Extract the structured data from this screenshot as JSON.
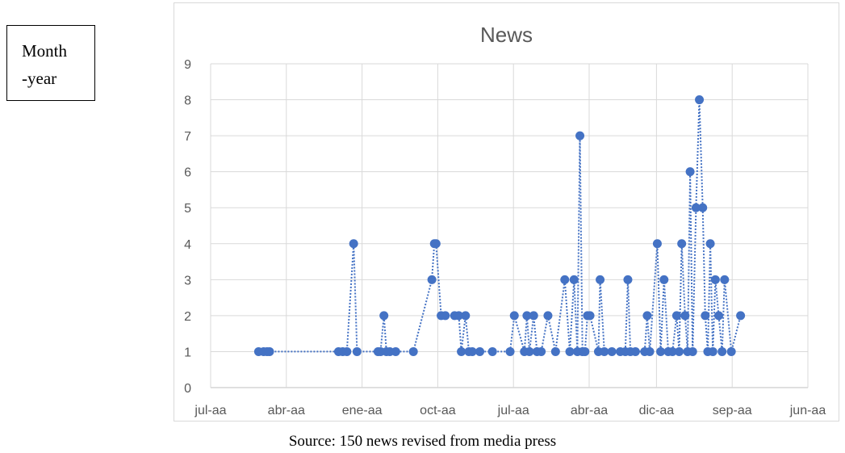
{
  "side_note": {
    "line1": "Month",
    "line2": "-year"
  },
  "caption": "Source: 150 news revised from media press",
  "chart_data": {
    "type": "line",
    "title": "News",
    "xlabel": "",
    "ylabel": "",
    "ylim": [
      0,
      9
    ],
    "y_ticks": [
      0,
      1,
      2,
      3,
      4,
      5,
      6,
      7,
      8,
      9
    ],
    "x_tick_labels": [
      "jul-aa",
      "abr-aa",
      "ene-aa",
      "oct-aa",
      "jul-aa",
      "abr-aa",
      "dic-aa",
      "sep-aa",
      "jun-aa"
    ],
    "x_tick_positions": [
      0,
      9,
      18,
      27,
      36,
      45,
      53,
      62,
      71
    ],
    "xlim": [
      0,
      71
    ],
    "grid": true,
    "line_style": "dotted",
    "color": "#4472c4",
    "series": [
      {
        "x": [
          5.7,
          6.3,
          6.7,
          7.0,
          15.2,
          15.7,
          16.2,
          17.0,
          17.4,
          19.9,
          20.2,
          20.6,
          20.9,
          21.3,
          22.0,
          24.1,
          26.3,
          26.6,
          26.8,
          27.4,
          27.9,
          29.0,
          29.5,
          29.8,
          30.3,
          30.7,
          31.1,
          32.0,
          33.5,
          35.6,
          36.1,
          37.3,
          37.6,
          37.9,
          38.4,
          38.8,
          39.3,
          40.1,
          41.0,
          42.1,
          42.7,
          43.2,
          43.6,
          43.9,
          44.2,
          44.5,
          44.8,
          45.1,
          46.1,
          46.3,
          46.8,
          47.7,
          48.7,
          49.3,
          49.6,
          49.9,
          50.5,
          51.6,
          51.9,
          52.2,
          53.1,
          53.5,
          53.9,
          54.4,
          54.9,
          55.4,
          55.7,
          56.0,
          56.4,
          56.7,
          57.0,
          57.3,
          57.7,
          58.1,
          58.5,
          58.8,
          59.1,
          59.4,
          59.7,
          60.0,
          60.4,
          60.8,
          61.1,
          61.9,
          63.0
        ],
        "y": [
          1,
          1,
          1,
          1,
          1,
          1,
          1,
          4,
          1,
          1,
          1,
          2,
          1,
          1,
          1,
          1,
          3,
          4,
          4,
          2,
          2,
          2,
          2,
          1,
          2,
          1,
          1,
          1,
          1,
          1,
          2,
          1,
          2,
          1,
          2,
          1,
          1,
          2,
          1,
          3,
          1,
          3,
          1,
          7,
          1,
          1,
          2,
          2,
          1,
          3,
          1,
          1,
          1,
          1,
          3,
          1,
          1,
          1,
          2,
          1,
          4,
          1,
          3,
          1,
          1,
          2,
          1,
          4,
          2,
          1,
          6,
          1,
          5,
          8,
          5,
          2,
          1,
          4,
          1,
          3,
          2,
          1,
          3,
          1,
          2
        ]
      }
    ]
  }
}
